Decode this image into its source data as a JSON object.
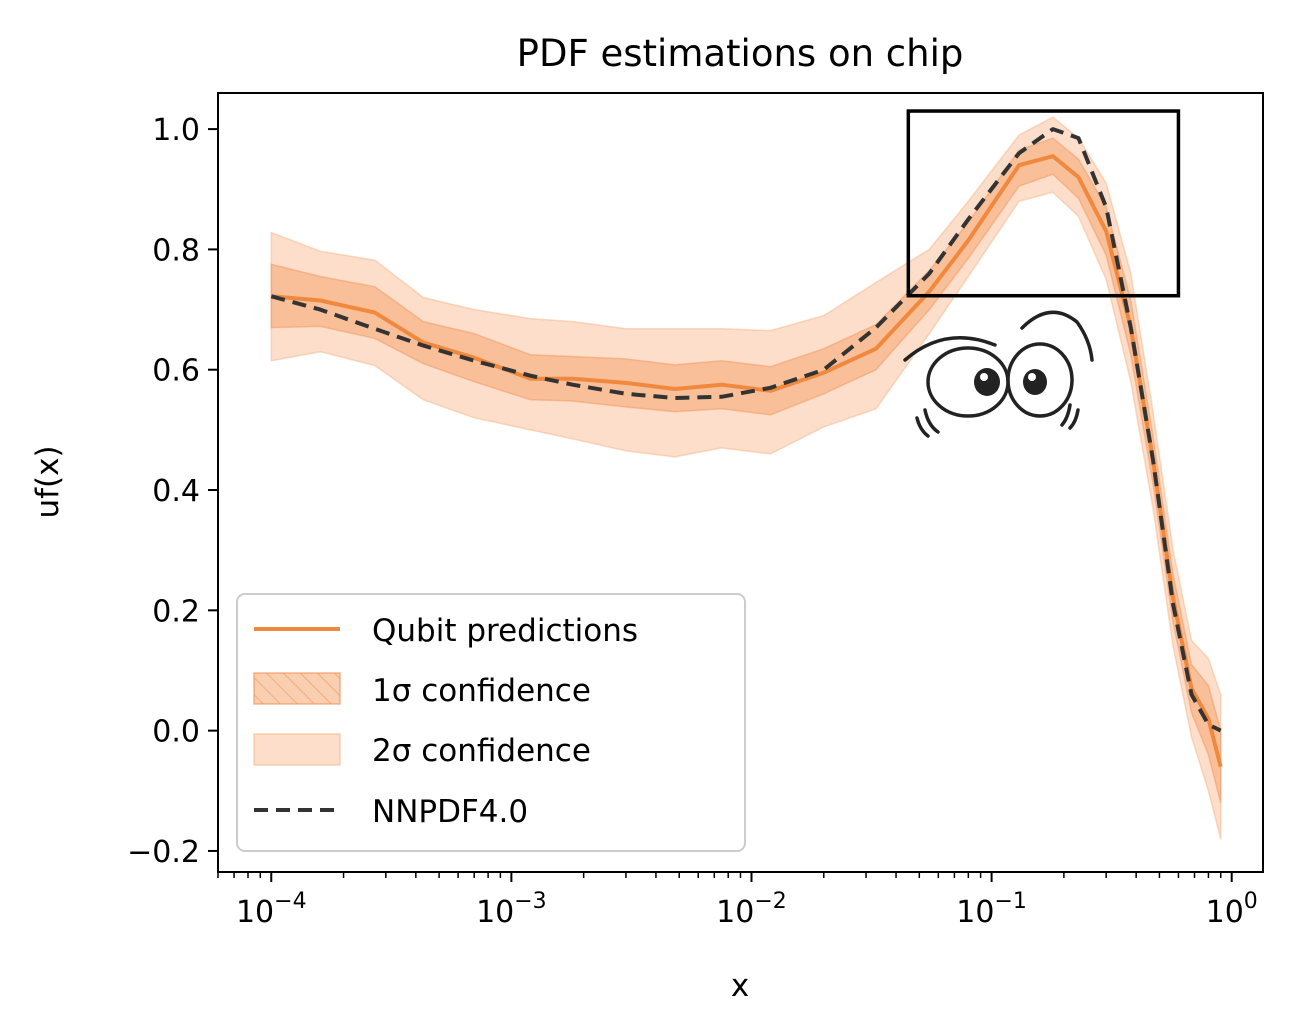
{
  "chart_data": {
    "type": "line",
    "title": "PDF estimations on chip",
    "xlabel": "x",
    "ylabel": "uf(x)",
    "xscale": "log",
    "xlim": [
      6e-05,
      1.35
    ],
    "ylim": [
      -0.235,
      1.06
    ],
    "x_ticks": [
      0.0001,
      0.001,
      0.01,
      0.1,
      1
    ],
    "x_tick_labels": [
      {
        "base": "10",
        "exp": "−4"
      },
      {
        "base": "10",
        "exp": "−3"
      },
      {
        "base": "10",
        "exp": "−2"
      },
      {
        "base": "10",
        "exp": "−1"
      },
      {
        "base": "10",
        "exp": "0"
      }
    ],
    "y_ticks": [
      -0.2,
      0.0,
      0.2,
      0.4,
      0.6,
      0.8,
      1.0
    ],
    "y_tick_labels": [
      "−0.2",
      "0.0",
      "0.2",
      "0.4",
      "0.6",
      "0.8",
      "1.0"
    ],
    "grid": false,
    "legend_position": "lower-left",
    "colors": {
      "qubit": "#f0883e",
      "band1": "#f4a570",
      "band2": "#fbd3b8",
      "nnpdf": "#333333"
    },
    "x": [
      0.0001,
      0.00016,
      0.00027,
      0.00043,
      0.0007,
      0.0012,
      0.0018,
      0.003,
      0.0048,
      0.0075,
      0.012,
      0.02,
      0.033,
      0.055,
      0.08,
      0.13,
      0.18,
      0.23,
      0.3,
      0.38,
      0.47,
      0.57,
      0.68,
      0.8,
      0.9
    ],
    "series": [
      {
        "name": "Qubit predictions",
        "style": "solid",
        "values": [
          0.722,
          0.715,
          0.695,
          0.645,
          0.62,
          0.585,
          0.585,
          0.578,
          0.568,
          0.575,
          0.565,
          0.595,
          0.635,
          0.73,
          0.815,
          0.94,
          0.955,
          0.92,
          0.83,
          0.67,
          0.45,
          0.22,
          0.07,
          0.02,
          -0.06
        ],
        "sigma1": {
          "name": "1σ confidence",
          "lower": [
            0.67,
            0.672,
            0.652,
            0.61,
            0.58,
            0.55,
            0.548,
            0.538,
            0.53,
            0.535,
            0.525,
            0.56,
            0.6,
            0.7,
            0.785,
            0.905,
            0.925,
            0.885,
            0.79,
            0.625,
            0.41,
            0.18,
            0.03,
            -0.04,
            -0.12
          ],
          "upper": [
            0.775,
            0.755,
            0.738,
            0.68,
            0.66,
            0.625,
            0.622,
            0.618,
            0.608,
            0.615,
            0.605,
            0.635,
            0.675,
            0.765,
            0.845,
            0.965,
            0.985,
            0.95,
            0.87,
            0.715,
            0.49,
            0.26,
            0.11,
            0.075,
            0.0
          ]
        },
        "sigma2": {
          "name": "2σ confidence",
          "lower": [
            0.615,
            0.63,
            0.607,
            0.55,
            0.52,
            0.5,
            0.485,
            0.465,
            0.455,
            0.47,
            0.46,
            0.505,
            0.535,
            0.66,
            0.755,
            0.88,
            0.895,
            0.855,
            0.75,
            0.58,
            0.37,
            0.14,
            -0.01,
            -0.1,
            -0.18
          ],
          "upper": [
            0.828,
            0.797,
            0.782,
            0.72,
            0.7,
            0.685,
            0.68,
            0.668,
            0.668,
            0.668,
            0.665,
            0.69,
            0.745,
            0.8,
            0.88,
            0.99,
            1.02,
            0.985,
            0.91,
            0.76,
            0.53,
            0.3,
            0.15,
            0.12,
            0.06
          ]
        }
      },
      {
        "name": "NNPDF4.0",
        "style": "dashed",
        "values": [
          0.722,
          0.7,
          0.668,
          0.64,
          0.615,
          0.59,
          0.575,
          0.56,
          0.553,
          0.555,
          0.57,
          0.6,
          0.67,
          0.76,
          0.85,
          0.96,
          1.0,
          0.985,
          0.87,
          0.67,
          0.45,
          0.21,
          0.06,
          0.01,
          0.0
        ]
      }
    ],
    "annotations": [
      {
        "type": "rectangle",
        "x_range": [
          0.045,
          0.6
        ],
        "y_range": [
          0.723,
          1.03
        ]
      },
      {
        "type": "cartoon-eyes"
      }
    ],
    "legend": [
      {
        "label": "Qubit predictions",
        "kind": "line-solid"
      },
      {
        "label": "1σ confidence",
        "kind": "band-hatched"
      },
      {
        "label": "2σ confidence",
        "kind": "band-light"
      },
      {
        "label": "NNPDF4.0",
        "kind": "line-dashed"
      }
    ]
  }
}
